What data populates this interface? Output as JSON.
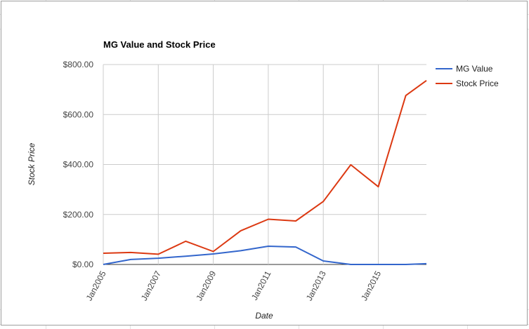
{
  "chart_data": {
    "type": "line",
    "title": "MG Value and Stock Price",
    "xlabel": "Date",
    "ylabel": "Stock Price",
    "x": [
      2005,
      2006,
      2007,
      2008,
      2009,
      2010,
      2011,
      2012,
      2013,
      2014,
      2015,
      2016,
      2016.75
    ],
    "x_ticks": [
      {
        "x": 2005,
        "label": "Jan2005"
      },
      {
        "x": 2007,
        "label": "Jan2007"
      },
      {
        "x": 2009,
        "label": "Jan2009"
      },
      {
        "x": 2011,
        "label": "Jan2011"
      },
      {
        "x": 2013,
        "label": "Jan2013"
      },
      {
        "x": 2015,
        "label": "Jan2015"
      }
    ],
    "y_ticks": [
      {
        "value": 0,
        "label": "$0.00"
      },
      {
        "value": 200,
        "label": "$200.00"
      },
      {
        "value": 400,
        "label": "$400.00"
      },
      {
        "value": 600,
        "label": "$600.00"
      },
      {
        "value": 800,
        "label": "$800.00"
      }
    ],
    "xlim": [
      2005,
      2016.75
    ],
    "ylim": [
      0,
      800
    ],
    "grid": true,
    "legend": "right",
    "series": [
      {
        "name": "MG Value",
        "color": "#3366cc",
        "values": [
          0,
          20,
          25,
          33,
          42,
          55,
          73,
          70,
          14,
          0,
          0,
          0,
          3
        ]
      },
      {
        "name": "Stock Price",
        "color": "#dc3912",
        "values": [
          45,
          48,
          41,
          93,
          52,
          135,
          181,
          174,
          252,
          399,
          311,
          676,
          736
        ]
      }
    ]
  }
}
